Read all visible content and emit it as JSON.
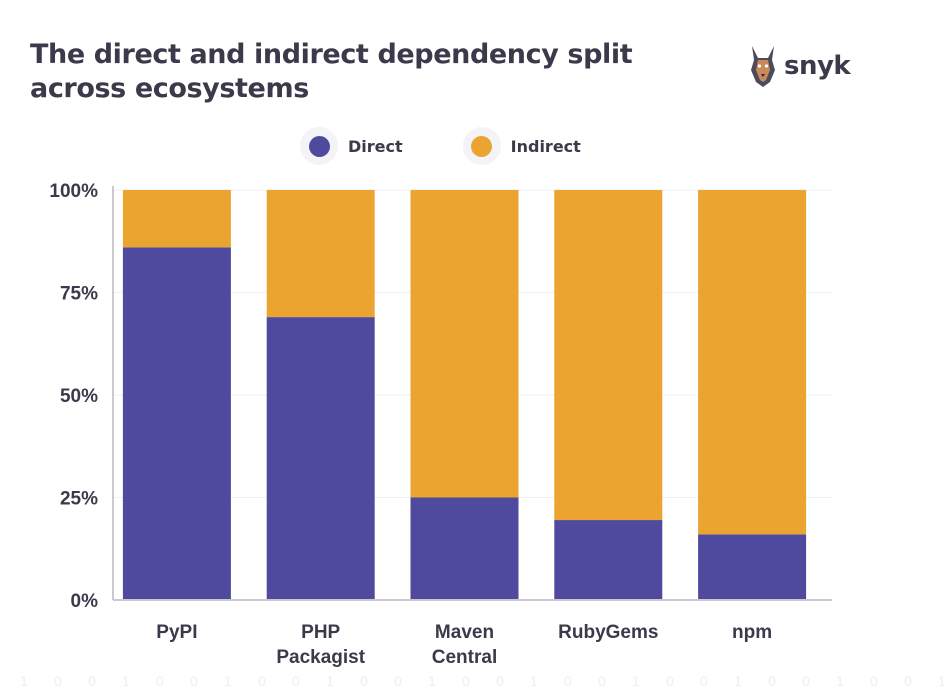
{
  "title": "The direct and indirect dependency split across ecosystems",
  "brand": {
    "name": "snyk",
    "accent": "#4f4a9d"
  },
  "chart_data": {
    "type": "bar",
    "stacked": true,
    "categories": [
      [
        "PyPI"
      ],
      [
        "PHP",
        "Packagist"
      ],
      [
        "Maven",
        "Central"
      ],
      [
        "RubyGems"
      ],
      [
        "npm"
      ]
    ],
    "series": [
      {
        "name": "Direct",
        "color": "#4f4a9d",
        "values": [
          86,
          69,
          25,
          19.5,
          16
        ]
      },
      {
        "name": "Indirect",
        "color": "#eba430",
        "values": [
          14,
          31,
          75,
          80.5,
          84
        ]
      }
    ],
    "yticks": [
      "0%",
      "25%",
      "50%",
      "75%",
      "100%"
    ],
    "ytick_values": [
      0,
      25,
      50,
      75,
      100
    ],
    "ylim": [
      0,
      100
    ],
    "xlabel": "",
    "ylabel": "",
    "legend": "top-center"
  }
}
